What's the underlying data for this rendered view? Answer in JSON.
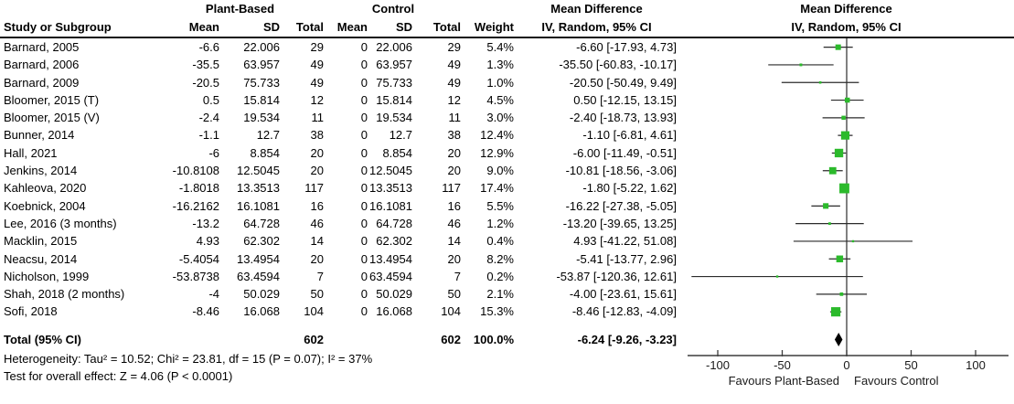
{
  "table": {
    "group1_label": "Plant-Based",
    "group2_label": "Control",
    "md_label": "Mean Difference",
    "method_label": "IV, Random, 95% CI",
    "headers": {
      "study": "Study or Subgroup",
      "mean": "Mean",
      "sd": "SD",
      "total": "Total",
      "weight": "Weight"
    },
    "rows": [
      {
        "study": "Barnard, 2005",
        "pb_mean": "-6.6",
        "pb_sd": "22.006",
        "pb_total": "29",
        "c_mean": "0",
        "c_sd": "22.006",
        "c_total": "29",
        "weight": "5.4%",
        "md_ci": "-6.60 [-17.93, 4.73]"
      },
      {
        "study": "Barnard, 2006",
        "pb_mean": "-35.5",
        "pb_sd": "63.957",
        "pb_total": "49",
        "c_mean": "0",
        "c_sd": "63.957",
        "c_total": "49",
        "weight": "1.3%",
        "md_ci": "-35.50 [-60.83, -10.17]"
      },
      {
        "study": "Barnard, 2009",
        "pb_mean": "-20.5",
        "pb_sd": "75.733",
        "pb_total": "49",
        "c_mean": "0",
        "c_sd": "75.733",
        "c_total": "49",
        "weight": "1.0%",
        "md_ci": "-20.50 [-50.49, 9.49]"
      },
      {
        "study": "Bloomer, 2015 (T)",
        "pb_mean": "0.5",
        "pb_sd": "15.814",
        "pb_total": "12",
        "c_mean": "0",
        "c_sd": "15.814",
        "c_total": "12",
        "weight": "4.5%",
        "md_ci": "0.50 [-12.15, 13.15]"
      },
      {
        "study": "Bloomer, 2015 (V)",
        "pb_mean": "-2.4",
        "pb_sd": "19.534",
        "pb_total": "11",
        "c_mean": "0",
        "c_sd": "19.534",
        "c_total": "11",
        "weight": "3.0%",
        "md_ci": "-2.40 [-18.73, 13.93]"
      },
      {
        "study": "Bunner, 2014",
        "pb_mean": "-1.1",
        "pb_sd": "12.7",
        "pb_total": "38",
        "c_mean": "0",
        "c_sd": "12.7",
        "c_total": "38",
        "weight": "12.4%",
        "md_ci": "-1.10 [-6.81, 4.61]"
      },
      {
        "study": "Hall, 2021",
        "pb_mean": "-6",
        "pb_sd": "8.854",
        "pb_total": "20",
        "c_mean": "0",
        "c_sd": "8.854",
        "c_total": "20",
        "weight": "12.9%",
        "md_ci": "-6.00 [-11.49, -0.51]"
      },
      {
        "study": "Jenkins, 2014",
        "pb_mean": "-10.8108",
        "pb_sd": "12.5045",
        "pb_total": "20",
        "c_mean": "0",
        "c_sd": "12.5045",
        "c_total": "20",
        "weight": "9.0%",
        "md_ci": "-10.81 [-18.56, -3.06]"
      },
      {
        "study": "Kahleova, 2020",
        "pb_mean": "-1.8018",
        "pb_sd": "13.3513",
        "pb_total": "117",
        "c_mean": "0",
        "c_sd": "13.3513",
        "c_total": "117",
        "weight": "17.4%",
        "md_ci": "-1.80 [-5.22, 1.62]"
      },
      {
        "study": "Koebnick, 2004",
        "pb_mean": "-16.2162",
        "pb_sd": "16.1081",
        "pb_total": "16",
        "c_mean": "0",
        "c_sd": "16.1081",
        "c_total": "16",
        "weight": "5.5%",
        "md_ci": "-16.22 [-27.38, -5.05]"
      },
      {
        "study": "Lee, 2016 (3 months)",
        "pb_mean": "-13.2",
        "pb_sd": "64.728",
        "pb_total": "46",
        "c_mean": "0",
        "c_sd": "64.728",
        "c_total": "46",
        "weight": "1.2%",
        "md_ci": "-13.20 [-39.65, 13.25]"
      },
      {
        "study": "Macklin, 2015",
        "pb_mean": "4.93",
        "pb_sd": "62.302",
        "pb_total": "14",
        "c_mean": "0",
        "c_sd": "62.302",
        "c_total": "14",
        "weight": "0.4%",
        "md_ci": "4.93 [-41.22, 51.08]"
      },
      {
        "study": "Neacsu, 2014",
        "pb_mean": "-5.4054",
        "pb_sd": "13.4954",
        "pb_total": "20",
        "c_mean": "0",
        "c_sd": "13.4954",
        "c_total": "20",
        "weight": "8.2%",
        "md_ci": "-5.41 [-13.77, 2.96]"
      },
      {
        "study": "Nicholson, 1999",
        "pb_mean": "-53.8738",
        "pb_sd": "63.4594",
        "pb_total": "7",
        "c_mean": "0",
        "c_sd": "63.4594",
        "c_total": "7",
        "weight": "0.2%",
        "md_ci": "-53.87 [-120.36, 12.61]"
      },
      {
        "study": "Shah, 2018 (2 months)",
        "pb_mean": "-4",
        "pb_sd": "50.029",
        "pb_total": "50",
        "c_mean": "0",
        "c_sd": "50.029",
        "c_total": "50",
        "weight": "2.1%",
        "md_ci": "-4.00 [-23.61, 15.61]"
      },
      {
        "study": "Sofi, 2018",
        "pb_mean": "-8.46",
        "pb_sd": "16.068",
        "pb_total": "104",
        "c_mean": "0",
        "c_sd": "16.068",
        "c_total": "104",
        "weight": "15.3%",
        "md_ci": "-8.46 [-12.83, -4.09]"
      }
    ],
    "total_row": {
      "label": "Total (95% CI)",
      "pb_total": "602",
      "c_total": "602",
      "weight": "100.0%",
      "md_ci": "-6.24 [-9.26, -3.23]"
    }
  },
  "footnotes": {
    "heterogeneity": "Heterogeneity: Tau² = 10.52; Chi² = 23.81, df = 15 (P = 0.07); I² = 37%",
    "overall_effect": "Test for overall effect: Z = 4.06 (P < 0.0001)"
  },
  "chart_data": {
    "type": "forest",
    "effect_label": "Mean Difference",
    "method": "IV, Random, 95% CI",
    "x_axis": {
      "ticks": [
        -100,
        -50,
        0,
        50,
        100
      ],
      "xlim": [
        -123,
        125
      ],
      "label_left": "Favours Plant-Based",
      "label_right": "Favours Control"
    },
    "studies": [
      {
        "name": "Barnard, 2005",
        "md": -6.6,
        "ci_lower": -17.93,
        "ci_upper": 4.73,
        "weight_pct": 5.4
      },
      {
        "name": "Barnard, 2006",
        "md": -35.5,
        "ci_lower": -60.83,
        "ci_upper": -10.17,
        "weight_pct": 1.3
      },
      {
        "name": "Barnard, 2009",
        "md": -20.5,
        "ci_lower": -50.49,
        "ci_upper": 9.49,
        "weight_pct": 1.0
      },
      {
        "name": "Bloomer, 2015 (T)",
        "md": 0.5,
        "ci_lower": -12.15,
        "ci_upper": 13.15,
        "weight_pct": 4.5
      },
      {
        "name": "Bloomer, 2015 (V)",
        "md": -2.4,
        "ci_lower": -18.73,
        "ci_upper": 13.93,
        "weight_pct": 3.0
      },
      {
        "name": "Bunner, 2014",
        "md": -1.1,
        "ci_lower": -6.81,
        "ci_upper": 4.61,
        "weight_pct": 12.4
      },
      {
        "name": "Hall, 2021",
        "md": -6.0,
        "ci_lower": -11.49,
        "ci_upper": -0.51,
        "weight_pct": 12.9
      },
      {
        "name": "Jenkins, 2014",
        "md": -10.81,
        "ci_lower": -18.56,
        "ci_upper": -3.06,
        "weight_pct": 9.0
      },
      {
        "name": "Kahleova, 2020",
        "md": -1.8,
        "ci_lower": -5.22,
        "ci_upper": 1.62,
        "weight_pct": 17.4
      },
      {
        "name": "Koebnick, 2004",
        "md": -16.22,
        "ci_lower": -27.38,
        "ci_upper": -5.05,
        "weight_pct": 5.5
      },
      {
        "name": "Lee, 2016 (3 months)",
        "md": -13.2,
        "ci_lower": -39.65,
        "ci_upper": 13.25,
        "weight_pct": 1.2
      },
      {
        "name": "Macklin, 2015",
        "md": 4.93,
        "ci_lower": -41.22,
        "ci_upper": 51.08,
        "weight_pct": 0.4
      },
      {
        "name": "Neacsu, 2014",
        "md": -5.41,
        "ci_lower": -13.77,
        "ci_upper": 2.96,
        "weight_pct": 8.2
      },
      {
        "name": "Nicholson, 1999",
        "md": -53.87,
        "ci_lower": -120.36,
        "ci_upper": 12.61,
        "weight_pct": 0.2
      },
      {
        "name": "Shah, 2018 (2 months)",
        "md": -4.0,
        "ci_lower": -23.61,
        "ci_upper": 15.61,
        "weight_pct": 2.1
      },
      {
        "name": "Sofi, 2018",
        "md": -8.46,
        "ci_lower": -12.83,
        "ci_upper": -4.09,
        "weight_pct": 15.3
      }
    ],
    "total": {
      "name": "Total (95% CI)",
      "md": -6.24,
      "ci_lower": -9.26,
      "ci_upper": -3.23,
      "weight_pct": 100.0
    },
    "marker_color": "#2BBA2B",
    "ci_line_color": "#2b2b2b",
    "axis_color": "#3c3c3c",
    "diamond_color": "#000000"
  }
}
